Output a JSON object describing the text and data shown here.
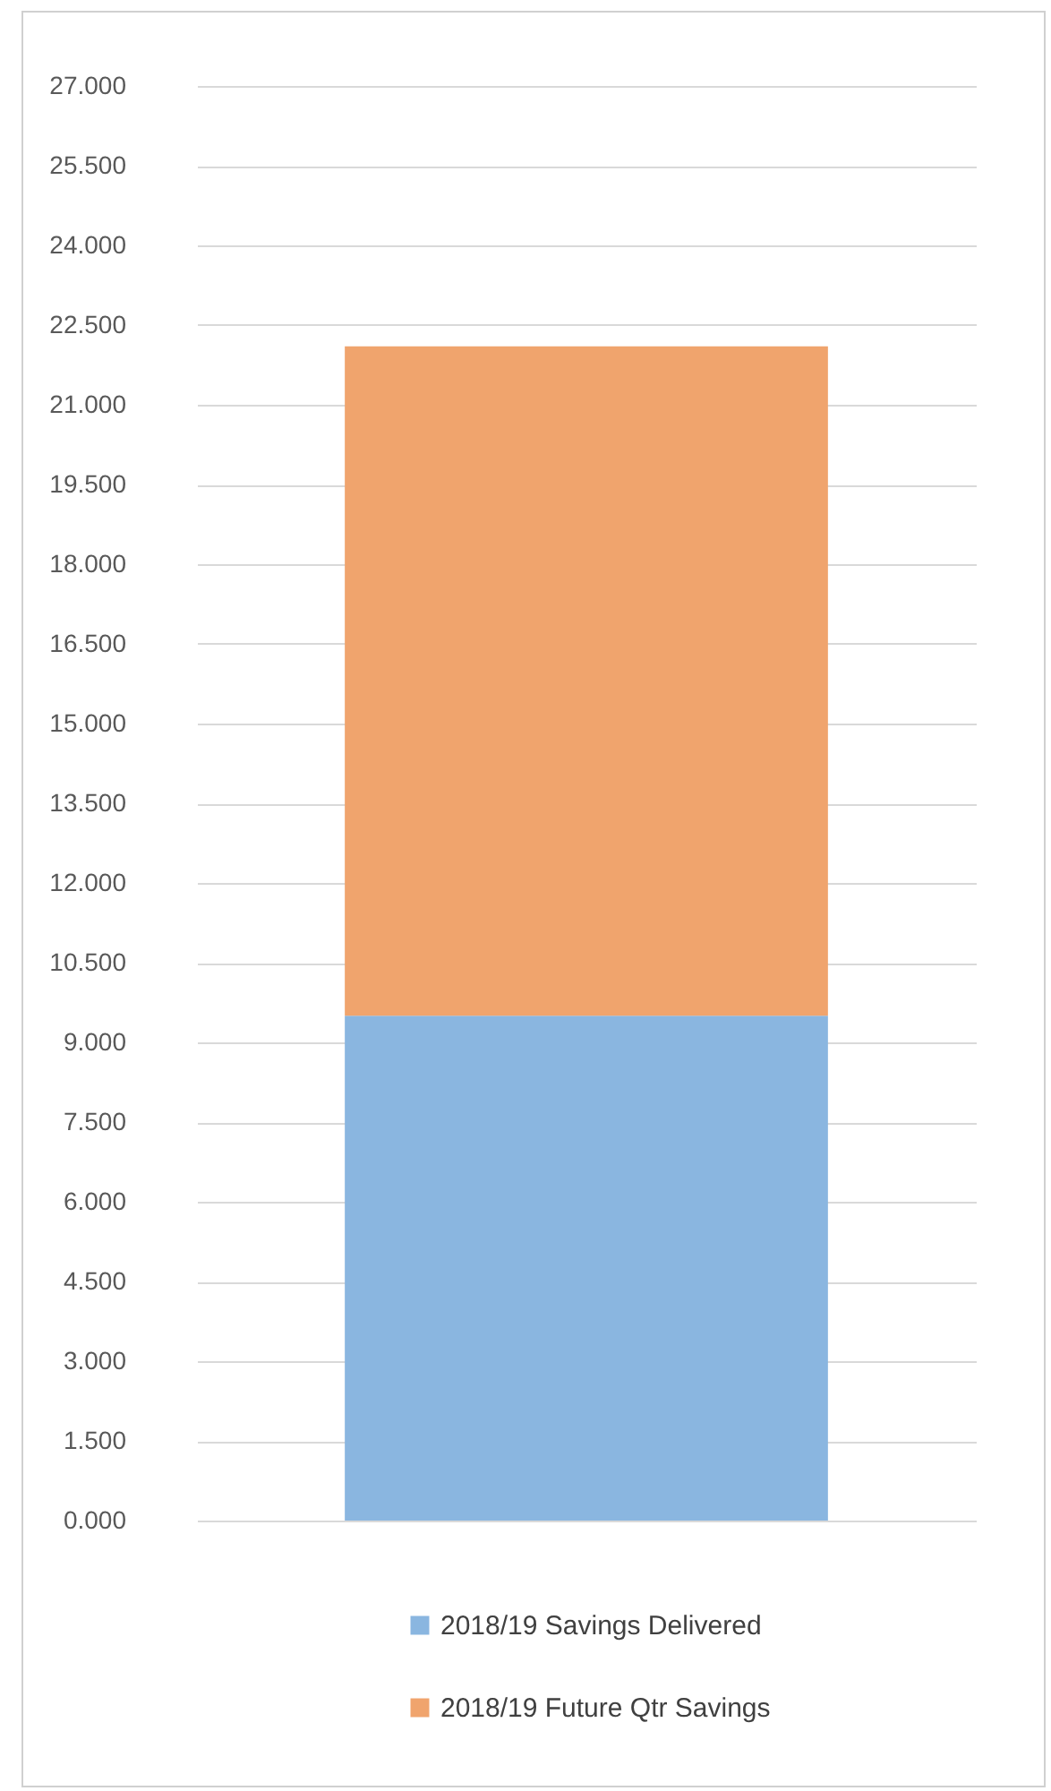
{
  "chart_data": {
    "type": "bar",
    "categories": [
      null
    ],
    "stacked": true,
    "series": [
      {
        "name": "2018/19 Savings Delivered",
        "color": "#8ab6e0",
        "values": [
          9.5
        ]
      },
      {
        "name": "2018/19 Future Qtr Savings",
        "color": "#f0a46d",
        "values": [
          12.6
        ]
      }
    ],
    "ylim": [
      0,
      27
    ],
    "yticks": [
      {
        "value": 0,
        "label": "0.000"
      },
      {
        "value": 1.5,
        "label": "1.500"
      },
      {
        "value": 3,
        "label": "3.000"
      },
      {
        "value": 4.5,
        "label": "4.500"
      },
      {
        "value": 6,
        "label": "6.000"
      },
      {
        "value": 7.5,
        "label": "7.500"
      },
      {
        "value": 9,
        "label": "9.000"
      },
      {
        "value": 10.5,
        "label": "10.500"
      },
      {
        "value": 12,
        "label": "12.000"
      },
      {
        "value": 13.5,
        "label": "13.500"
      },
      {
        "value": 15,
        "label": "15.000"
      },
      {
        "value": 16.5,
        "label": "16.500"
      },
      {
        "value": 18,
        "label": "18.000"
      },
      {
        "value": 19.5,
        "label": "19.500"
      },
      {
        "value": 21,
        "label": "21.000"
      },
      {
        "value": 22.5,
        "label": "22.500"
      },
      {
        "value": 24,
        "label": "24.000"
      },
      {
        "value": 25.5,
        "label": "25.500"
      },
      {
        "value": 27,
        "label": "27.000"
      }
    ],
    "grid": "y",
    "legend": "bottom"
  }
}
